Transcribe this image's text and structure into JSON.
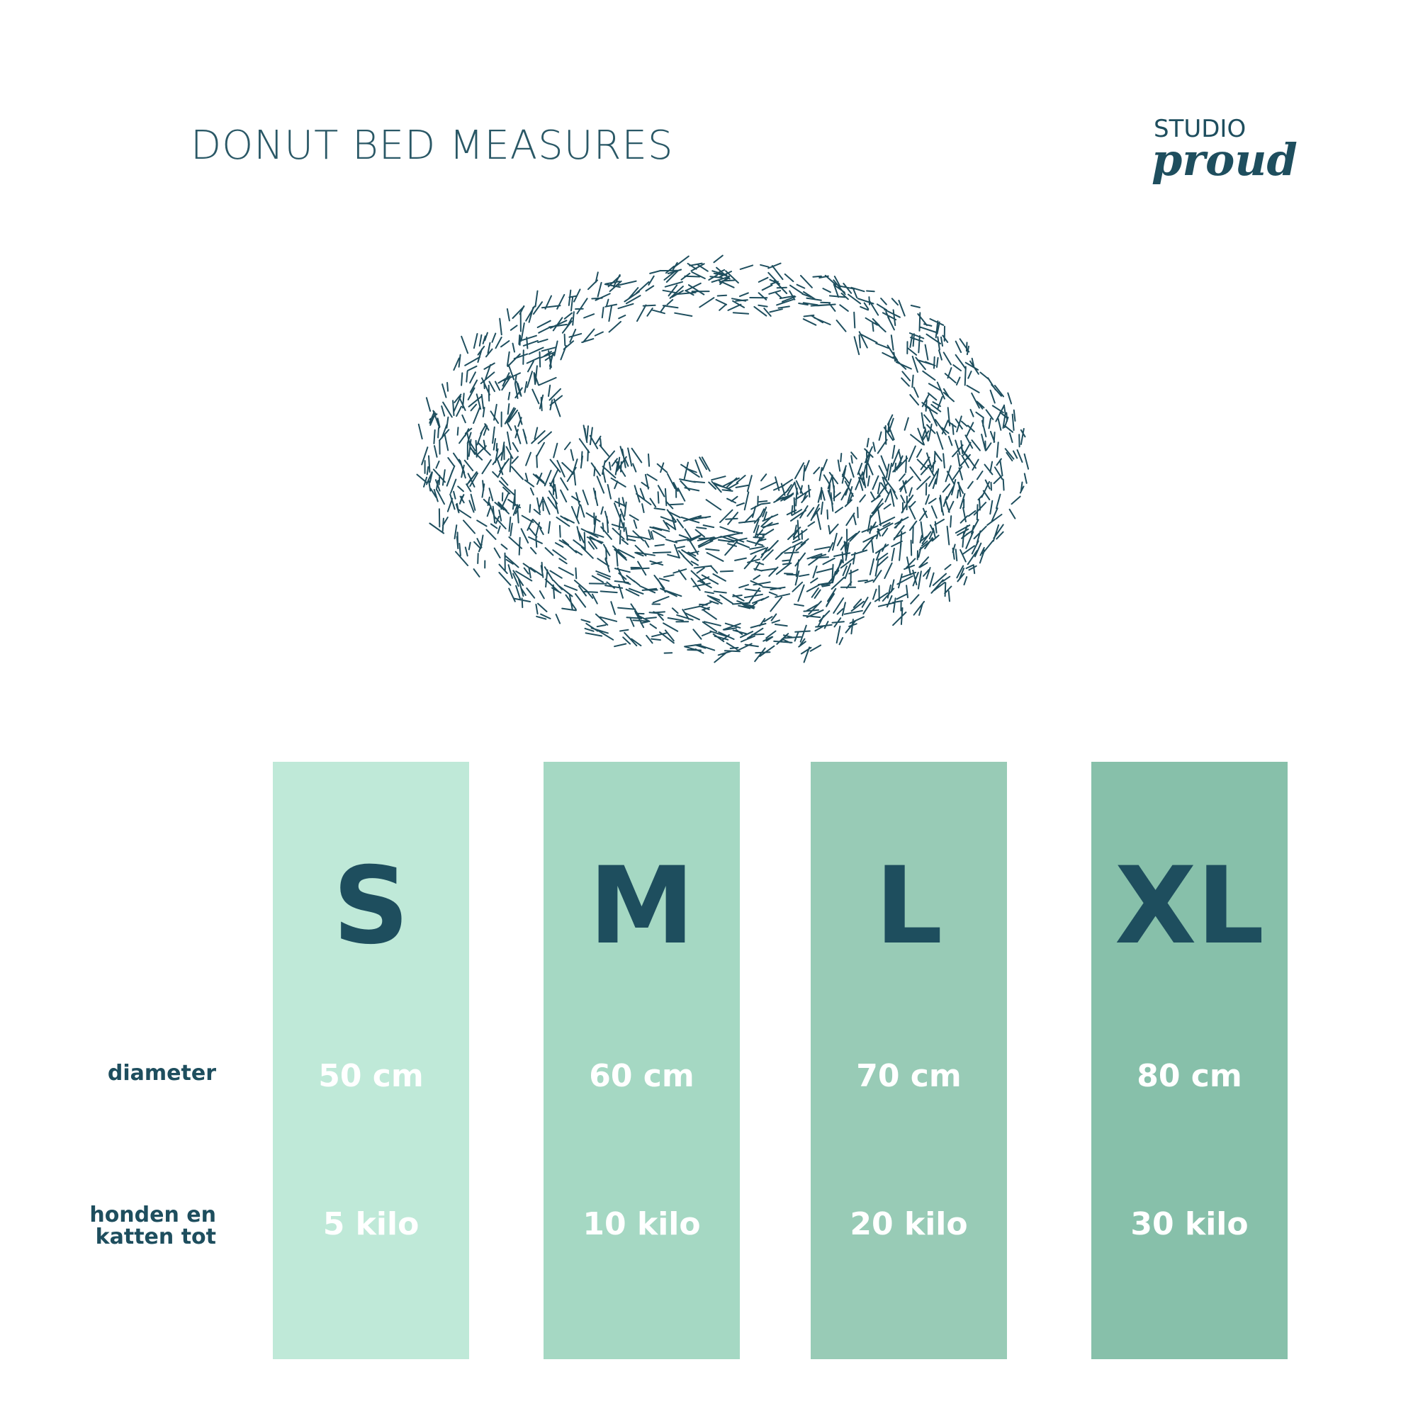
{
  "header": {
    "title": "DONUT BED MEASURES",
    "logo": {
      "top": "STUDIO",
      "bottom": "proud"
    }
  },
  "row_labels": {
    "diameter": "diameter",
    "weight": [
      "honden en",
      "katten tot"
    ]
  },
  "sizes": [
    {
      "name": "S",
      "diameter": "50 cm",
      "weight": "5 kilo",
      "color": "#bfe9d8"
    },
    {
      "name": "M",
      "diameter": "60 cm",
      "weight": "10 kilo",
      "color": "#a5d8c3"
    },
    {
      "name": "L",
      "diameter": "70 cm",
      "weight": "20 kilo",
      "color": "#98cbb6"
    },
    {
      "name": "XL",
      "diameter": "80 cm",
      "weight": "30 kilo",
      "color": "#87c0aa"
    }
  ]
}
